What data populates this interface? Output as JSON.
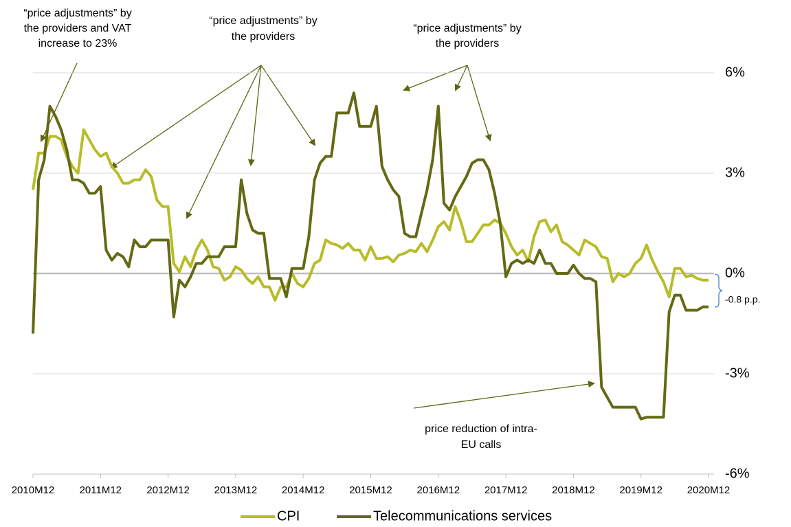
{
  "chart_data": {
    "type": "line",
    "categories": [
      "2010M12",
      null,
      null,
      null,
      null,
      null,
      null,
      null,
      null,
      null,
      null,
      null,
      "2011M12",
      null,
      null,
      null,
      null,
      null,
      null,
      null,
      null,
      null,
      null,
      null,
      "2012M12",
      null,
      null,
      null,
      null,
      null,
      null,
      null,
      null,
      null,
      null,
      null,
      "2013M12",
      null,
      null,
      null,
      null,
      null,
      null,
      null,
      null,
      null,
      null,
      null,
      "2014M12",
      null,
      null,
      null,
      null,
      null,
      null,
      null,
      null,
      null,
      null,
      null,
      "2015M12",
      null,
      null,
      null,
      null,
      null,
      null,
      null,
      null,
      null,
      null,
      null,
      "2016M12",
      null,
      null,
      null,
      null,
      null,
      null,
      null,
      null,
      null,
      null,
      null,
      "2017M12",
      null,
      null,
      null,
      null,
      null,
      null,
      null,
      null,
      null,
      null,
      null,
      "2018M12",
      null,
      null,
      null,
      null,
      null,
      null,
      null,
      null,
      null,
      null,
      null,
      "2019M12",
      null,
      null,
      null,
      null,
      null,
      null,
      null,
      null,
      null,
      null,
      null,
      "2020M12"
    ],
    "series": [
      {
        "name": "CPI",
        "color": "#b8bc2a",
        "values": [
          2.5,
          3.6,
          3.6,
          4.1,
          4.1,
          4.0,
          3.5,
          3.2,
          3.0,
          4.3,
          4.0,
          3.7,
          3.5,
          3.6,
          3.2,
          3.0,
          2.7,
          2.7,
          2.8,
          2.8,
          3.1,
          2.9,
          2.2,
          2.0,
          2.0,
          0.3,
          0.05,
          0.5,
          0.2,
          0.7,
          1.0,
          0.7,
          0.2,
          0.15,
          -0.2,
          -0.1,
          0.2,
          0.1,
          -0.15,
          -0.3,
          -0.1,
          -0.4,
          -0.4,
          -0.8,
          -0.4,
          -0.4,
          0.0,
          -0.3,
          -0.4,
          -0.15,
          0.3,
          0.4,
          1.0,
          0.9,
          0.85,
          0.75,
          0.9,
          0.7,
          0.7,
          0.4,
          0.8,
          0.45,
          0.45,
          0.5,
          0.35,
          0.55,
          0.6,
          0.7,
          0.65,
          0.9,
          0.65,
          1.0,
          1.4,
          1.55,
          1.3,
          2.0,
          1.55,
          0.95,
          0.95,
          1.2,
          1.45,
          1.45,
          1.6,
          1.5,
          1.2,
          0.8,
          0.55,
          0.7,
          0.35,
          1.1,
          1.55,
          1.6,
          1.25,
          1.45,
          0.95,
          0.85,
          0.7,
          0.55,
          1.0,
          0.9,
          0.8,
          0.5,
          0.45,
          -0.25,
          0.0,
          -0.1,
          0.0,
          0.3,
          0.45,
          0.85,
          0.4,
          0.05,
          -0.25,
          -0.7,
          0.15,
          0.15,
          -0.1,
          -0.05,
          -0.15,
          -0.2,
          -0.2
        ]
      },
      {
        "name": "Telecommunications services",
        "color": "#646914",
        "values": [
          -1.8,
          2.8,
          3.4,
          5.0,
          4.7,
          4.3,
          3.7,
          2.8,
          2.8,
          2.7,
          2.4,
          2.4,
          2.6,
          0.7,
          0.4,
          0.6,
          0.5,
          0.2,
          1.0,
          0.8,
          0.8,
          1.0,
          1.0,
          1.0,
          1.0,
          -1.3,
          -0.2,
          -0.4,
          -0.1,
          0.3,
          0.3,
          0.5,
          0.5,
          0.5,
          0.8,
          0.8,
          0.8,
          2.8,
          1.8,
          1.3,
          1.2,
          1.2,
          -0.15,
          -0.15,
          -0.15,
          -0.7,
          0.15,
          0.15,
          0.15,
          1.1,
          2.8,
          3.3,
          3.5,
          3.5,
          4.8,
          4.8,
          4.8,
          5.4,
          4.4,
          4.4,
          4.4,
          5.0,
          3.2,
          2.8,
          2.5,
          2.3,
          1.2,
          1.1,
          1.1,
          1.8,
          2.5,
          3.4,
          5.0,
          2.1,
          1.9,
          2.3,
          2.6,
          2.9,
          3.3,
          3.4,
          3.4,
          3.1,
          2.4,
          1.5,
          -0.1,
          0.3,
          0.4,
          0.3,
          0.4,
          0.3,
          0.7,
          0.3,
          0.3,
          0.0,
          0.0,
          0.0,
          0.25,
          0.0,
          -0.15,
          -0.15,
          -0.25,
          -3.4,
          -3.7,
          -4.0,
          -4.0,
          -4.0,
          -4.0,
          -4.0,
          -4.35,
          -4.3,
          -4.3,
          -4.3,
          -4.3,
          -1.15,
          -0.65,
          -0.65,
          -1.1,
          -1.1,
          -1.1,
          -1.0,
          -1.0
        ]
      }
    ],
    "ylim": [
      -6,
      6
    ],
    "yticks": [
      {
        "value": 6,
        "label": "6%"
      },
      {
        "value": 3,
        "label": "3%"
      },
      {
        "value": 0,
        "label": "0%"
      },
      {
        "value": -3,
        "label": "-3%"
      },
      {
        "value": -6,
        "label": "-6%"
      }
    ],
    "grid": true,
    "legend": "bottom",
    "annotations": [
      {
        "lines": [
          "“price adjustments” by",
          "the providers and VAT",
          "increase to 23%"
        ]
      },
      {
        "lines": [
          "“price adjustments” by",
          "the providers"
        ]
      },
      {
        "lines": [
          "“price adjustments” by",
          "the providers"
        ]
      },
      {
        "lines": [
          "price reduction of intra-",
          "EU calls"
        ]
      },
      {
        "lines": [
          "-0.8 p.p."
        ]
      }
    ]
  }
}
